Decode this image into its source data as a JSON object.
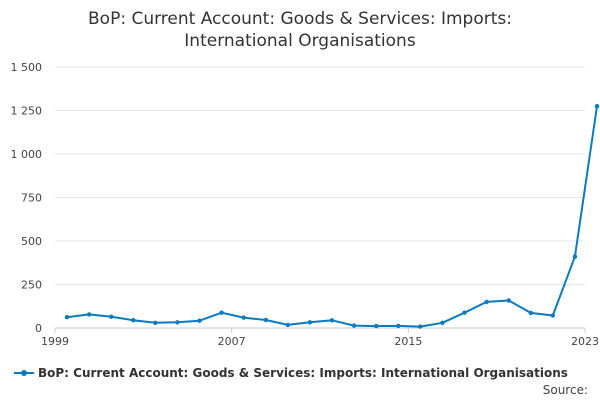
{
  "colors": {
    "series": "#0b7ac1",
    "grid": "#e6e6e6",
    "axis": "#cccccc"
  },
  "chart_data": {
    "type": "line",
    "title_lines": [
      "BoP: Current Account: Goods & Services: Imports:",
      "International Organisations"
    ],
    "xlabel": "",
    "ylabel": "",
    "x": [
      1999,
      2000,
      2001,
      2002,
      2003,
      2004,
      2005,
      2006,
      2007,
      2008,
      2009,
      2010,
      2011,
      2012,
      2013,
      2014,
      2015,
      2016,
      2017,
      2018,
      2019,
      2020,
      2021,
      2022,
      2023
    ],
    "x_ticks": [
      "1999",
      "2007",
      "2015",
      "2023"
    ],
    "x_tick_values": [
      1999,
      2007,
      2015,
      2023
    ],
    "xlim": [
      1999,
      2023
    ],
    "ylim": [
      0,
      1500
    ],
    "y_ticks": [
      0,
      250,
      500,
      750,
      1000,
      1250,
      1500
    ],
    "y_tick_labels": [
      "0",
      "250",
      "500",
      "750",
      "1 000",
      "1 250",
      "1 500"
    ],
    "grid": true,
    "legend_position": "bottom-left",
    "series": [
      {
        "name": "BoP: Current Account: Goods & Services: Imports: International Organisations",
        "values": [
          62,
          78,
          65,
          45,
          30,
          33,
          42,
          88,
          60,
          46,
          18,
          33,
          44,
          14,
          11,
          12,
          8,
          30,
          88,
          150,
          158,
          87,
          72,
          410,
          1275
        ]
      }
    ]
  },
  "source_label": "Source:"
}
